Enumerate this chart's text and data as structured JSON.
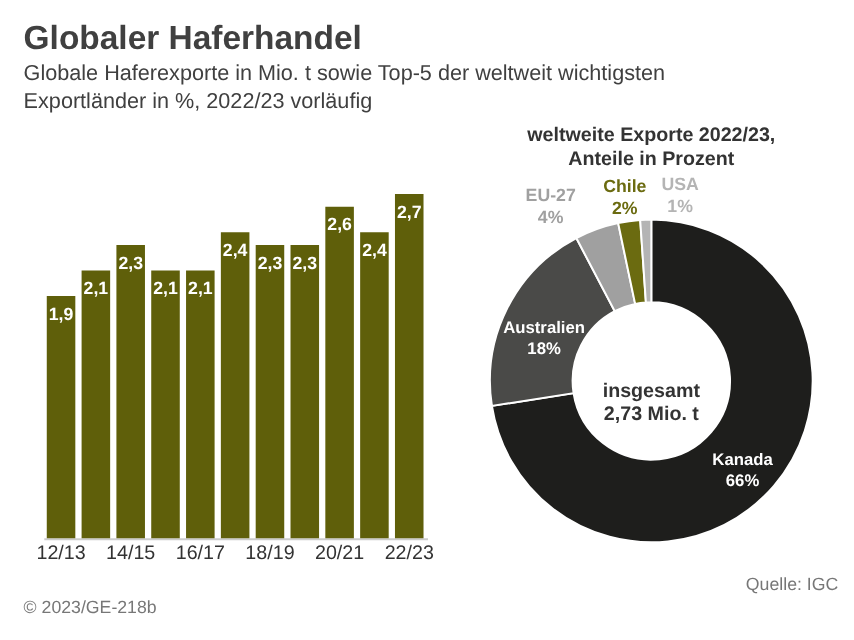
{
  "chart_data": [
    {
      "type": "bar",
      "title": "Globaler Haferhandel",
      "subtitle": "Globale Haferexporte in Mio. t sowie Top-5 der weltweit wichtigsten Exportländer in %, 2022/23 vorläufig",
      "categories": [
        "12/13",
        null,
        "14/15",
        null,
        "16/17",
        null,
        "18/19",
        null,
        "20/21",
        null,
        "22/23"
      ],
      "values": [
        1.9,
        2.1,
        2.3,
        2.1,
        2.1,
        2.4,
        2.3,
        2.3,
        2.6,
        2.4,
        2.7
      ],
      "value_labels": [
        "1,9",
        "2,1",
        "2,3",
        "2,1",
        "2,1",
        "2,4",
        "2,3",
        "2,3",
        "2,6",
        "2,4",
        "2,7"
      ],
      "color": "#5f5f0a",
      "grid": false,
      "tick_labels": "x",
      "annotations": [
        "© 2023/GE-218b"
      ]
    },
    {
      "type": "donut",
      "title": "weltweite Exporte 2022/23,\nAnteile in Prozent",
      "categories": [
        "Kanada",
        "Australien",
        "EU-27",
        "Chile",
        "USA"
      ],
      "values": [
        66,
        18,
        4,
        2,
        1
      ],
      "value_labels": [
        "66%",
        "18%",
        "4%",
        "2%",
        "1%"
      ],
      "colors": [
        "#1e1e1c",
        "#4a4a48",
        "#a0a0a0",
        "#6b6b10",
        "#b4b4b4"
      ],
      "annotations": [
        "insgesamt\n2,73 Mio. t",
        "Quelle: IGC"
      ]
    }
  ]
}
